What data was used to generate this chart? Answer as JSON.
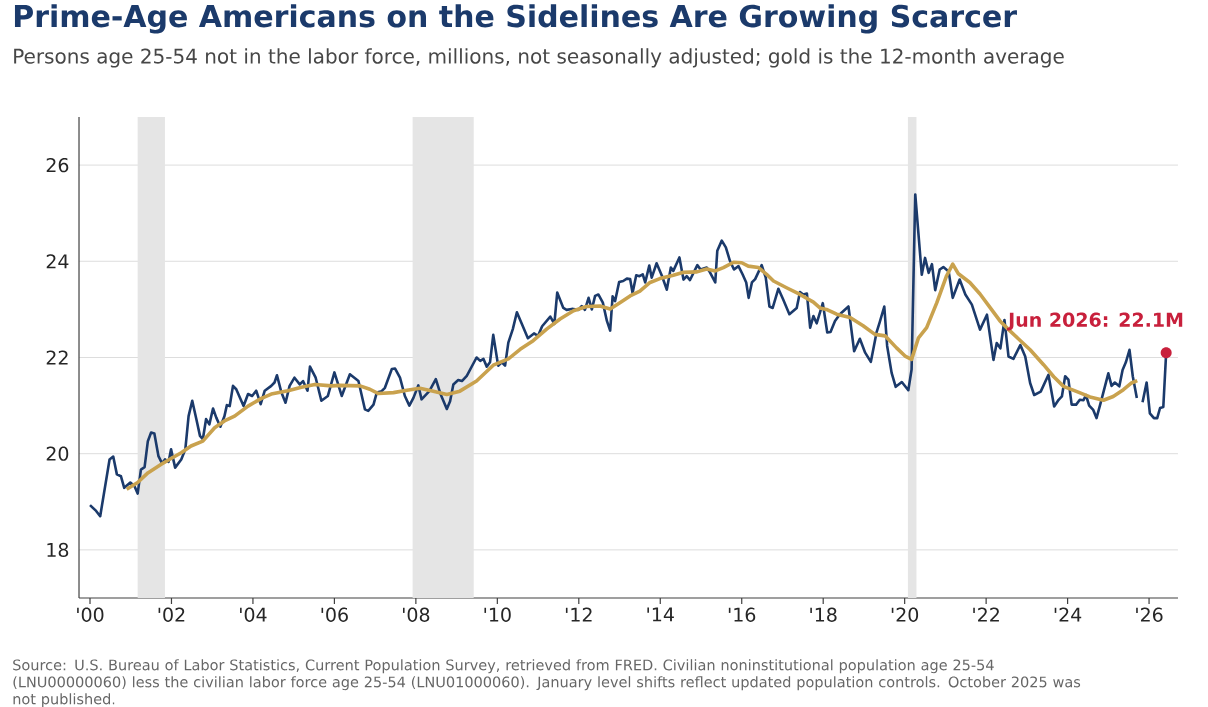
{
  "chart_data": {
    "type": "line",
    "title": "Prime-Age Americans on the Sidelines Are Growing Scarcer",
    "subtitle": "Persons age 25-54 not in the labor force, millions, not seasonally adjusted; gold is the 12-month average",
    "annotations": [
      {
        "text": "Jun 2026: 22.1M",
        "x": 2026.42,
        "y": 22.1
      },
      "Source: U.S. Bureau of Labor Statistics, Current Population Survey, retrieved from FRED. Civilian noninstitutional population age 25-54 (LNU00000060) less the civilian labor force age 25-54 (LNU01000060). January level shifts reflect updated population controls. October 2025 was not published."
    ],
    "xlim": [
      1999.73,
      2026.71
    ],
    "ylim": [
      17,
      27
    ],
    "xticks": [
      {
        "value": 2000,
        "label": "'00"
      },
      {
        "value": 2002,
        "label": "'02"
      },
      {
        "value": 2004,
        "label": "'04"
      },
      {
        "value": 2006,
        "label": "'06"
      },
      {
        "value": 2008,
        "label": "'08"
      },
      {
        "value": 2010,
        "label": "'10"
      },
      {
        "value": 2012,
        "label": "'12"
      },
      {
        "value": 2014,
        "label": "'14"
      },
      {
        "value": 2016,
        "label": "'16"
      },
      {
        "value": 2018,
        "label": "'18"
      },
      {
        "value": 2020,
        "label": "'20"
      },
      {
        "value": 2022,
        "label": "'22"
      },
      {
        "value": 2024,
        "label": "'24"
      },
      {
        "value": 2026,
        "label": "'26"
      }
    ],
    "yticks": [
      18,
      20,
      22,
      24,
      26
    ],
    "grid": "y",
    "bands": [
      {
        "axis": "x",
        "from": 2001.17,
        "to": 2001.84,
        "color": "#e5e5e5"
      },
      {
        "axis": "x",
        "from": 2007.92,
        "to": 2009.42,
        "color": "#e5e5e5"
      },
      {
        "axis": "x",
        "from": 2020.08,
        "to": 2020.29,
        "color": "#e5e5e5"
      }
    ],
    "series": [
      {
        "color": "#1b3a6b",
        "x": [
          2000.0,
          2000.15,
          2000.25,
          2000.48,
          2000.57,
          2000.66,
          2000.76,
          2000.84,
          2000.99,
          2001.09,
          2001.17,
          2001.25,
          2001.34,
          2001.42,
          2001.5,
          2001.58,
          2001.68,
          2001.77,
          2001.84,
          2001.93,
          2001.99,
          2002.09,
          2002.24,
          2002.34,
          2002.42,
          2002.51,
          2002.61,
          2002.7,
          2002.77,
          2002.85,
          2002.93,
          2003.02,
          2003.1,
          2003.2,
          2003.3,
          2003.36,
          2003.43,
          2003.51,
          2003.59,
          2003.77,
          2003.88,
          2003.98,
          2004.08,
          2004.19,
          2004.29,
          2004.45,
          2004.53,
          2004.59,
          2004.7,
          2004.8,
          2004.9,
          2005.02,
          2005.15,
          2005.23,
          2005.34,
          2005.4,
          2005.54,
          2005.68,
          2005.84,
          2006.0,
          2006.18,
          2006.38,
          2006.59,
          2006.75,
          2006.83,
          2006.96,
          2007.04,
          2007.16,
          2007.24,
          2007.41,
          2007.49,
          2007.61,
          2007.73,
          2007.84,
          2007.94,
          2008.06,
          2008.14,
          2008.33,
          2008.49,
          2008.61,
          2008.76,
          2008.84,
          2008.92,
          2009.04,
          2009.13,
          2009.25,
          2009.49,
          2009.58,
          2009.66,
          2009.74,
          2009.82,
          2009.9,
          2010.02,
          2010.11,
          2010.19,
          2010.27,
          2010.38,
          2010.48,
          2010.6,
          2010.75,
          2010.9,
          2011.0,
          2011.1,
          2011.3,
          2011.4,
          2011.47,
          2011.62,
          2011.7,
          2011.83,
          2011.99,
          2012.07,
          2012.15,
          2012.24,
          2012.32,
          2012.4,
          2012.48,
          2012.59,
          2012.69,
          2012.77,
          2012.83,
          2012.89,
          2012.99,
          2013.09,
          2013.18,
          2013.26,
          2013.32,
          2013.41,
          2013.49,
          2013.57,
          2013.63,
          2013.73,
          2013.79,
          2013.91,
          2014.04,
          2014.16,
          2014.26,
          2014.32,
          2014.47,
          2014.57,
          2014.65,
          2014.73,
          2014.91,
          2014.99,
          2015.14,
          2015.22,
          2015.35,
          2015.4,
          2015.51,
          2015.61,
          2015.71,
          2015.81,
          2015.92,
          2016.02,
          2016.11,
          2016.17,
          2016.25,
          2016.33,
          2016.49,
          2016.59,
          2016.68,
          2016.76,
          2016.9,
          2017.01,
          2017.17,
          2017.35,
          2017.43,
          2017.51,
          2017.6,
          2017.68,
          2017.76,
          2017.84,
          2017.99,
          2018.1,
          2018.18,
          2018.29,
          2018.41,
          2018.62,
          2018.76,
          2018.9,
          2019.03,
          2019.17,
          2019.31,
          2019.39,
          2019.5,
          2019.57,
          2019.68,
          2019.78,
          2019.93,
          2020.09,
          2020.17,
          2020.26,
          2020.42,
          2020.5,
          2020.59,
          2020.67,
          2020.75,
          2020.86,
          2020.95,
          2021.08,
          2021.18,
          2021.35,
          2021.49,
          2021.65,
          2021.85,
          2022.02,
          2022.18,
          2022.26,
          2022.35,
          2022.45,
          2022.55,
          2022.67,
          2022.84,
          2022.96,
          2023.08,
          2023.18,
          2023.34,
          2023.53,
          2023.67,
          2023.78,
          2023.86,
          2023.94,
          2024.02,
          2024.1,
          2024.21,
          2024.3,
          2024.39,
          2024.45,
          2024.53,
          2024.63,
          2024.71,
          2024.81,
          2024.92,
          2025.0,
          2025.08,
          2025.16,
          2025.27,
          2025.35,
          2025.43,
          2025.52,
          2025.6,
          2025.7,
          2025.77,
          2025.84,
          2025.94,
          2026.02,
          2026.12,
          2026.2,
          2026.27,
          2026.35,
          2026.42
        ],
        "values": [
          18.93,
          18.81,
          18.7,
          19.88,
          19.94,
          19.57,
          19.53,
          19.29,
          19.4,
          19.33,
          19.17,
          19.67,
          19.72,
          20.26,
          20.44,
          20.42,
          19.95,
          19.8,
          19.88,
          19.83,
          20.09,
          19.71,
          19.88,
          20.09,
          20.78,
          21.1,
          20.72,
          20.37,
          20.3,
          20.72,
          20.61,
          20.94,
          20.75,
          20.56,
          20.78,
          21.01,
          20.99,
          21.41,
          21.34,
          20.99,
          21.24,
          21.2,
          21.31,
          21.03,
          21.31,
          21.41,
          21.48,
          21.63,
          21.27,
          21.06,
          21.41,
          21.58,
          21.44,
          21.51,
          21.31,
          21.81,
          21.58,
          21.1,
          21.2,
          21.69,
          21.2,
          21.65,
          21.51,
          20.92,
          20.89,
          21.02,
          21.27,
          21.3,
          21.37,
          21.76,
          21.77,
          21.58,
          21.2,
          21.0,
          21.16,
          21.42,
          21.13,
          21.3,
          21.55,
          21.23,
          20.93,
          21.09,
          21.44,
          21.53,
          21.51,
          21.62,
          22.0,
          21.93,
          21.97,
          21.81,
          21.9,
          22.47,
          21.83,
          21.9,
          21.83,
          22.31,
          22.59,
          22.94,
          22.7,
          22.4,
          22.5,
          22.45,
          22.65,
          22.85,
          22.7,
          23.35,
          23.03,
          22.99,
          23.01,
          22.99,
          23.07,
          22.99,
          23.24,
          23.0,
          23.28,
          23.31,
          23.14,
          22.76,
          22.56,
          23.27,
          23.17,
          23.57,
          23.59,
          23.64,
          23.63,
          23.34,
          23.71,
          23.69,
          23.73,
          23.56,
          23.91,
          23.66,
          23.96,
          23.7,
          23.41,
          23.87,
          23.8,
          24.08,
          23.62,
          23.69,
          23.61,
          23.92,
          23.83,
          23.87,
          23.77,
          23.56,
          24.22,
          24.43,
          24.29,
          24.01,
          23.83,
          23.9,
          23.73,
          23.56,
          23.24,
          23.56,
          23.63,
          23.92,
          23.66,
          23.06,
          23.03,
          23.43,
          23.22,
          22.9,
          23.03,
          23.36,
          23.31,
          23.33,
          22.62,
          22.86,
          22.71,
          23.13,
          22.52,
          22.53,
          22.76,
          22.9,
          23.06,
          22.13,
          22.39,
          22.1,
          21.91,
          22.52,
          22.74,
          23.06,
          22.24,
          21.68,
          21.39,
          21.49,
          21.32,
          21.75,
          25.39,
          23.72,
          24.07,
          23.76,
          23.94,
          23.4,
          23.83,
          23.88,
          23.79,
          23.24,
          23.62,
          23.31,
          23.1,
          22.58,
          22.89,
          21.95,
          22.3,
          22.19,
          22.78,
          22.02,
          21.97,
          22.26,
          22.02,
          21.47,
          21.22,
          21.29,
          21.64,
          20.98,
          21.12,
          21.19,
          21.61,
          21.54,
          21.02,
          21.02,
          21.12,
          21.11,
          21.22,
          21.0,
          20.91,
          20.74,
          21.05,
          21.41,
          21.67,
          21.41,
          21.48,
          21.4,
          21.74,
          21.9,
          22.16,
          21.61,
          21.16,
          null,
          21.07,
          21.48,
          20.84,
          20.74,
          20.74,
          20.95,
          20.97,
          22.1
        ]
      },
      {
        "color": "#c9a24e",
        "x": [
          2000.9,
          2001.17,
          2001.42,
          2001.75,
          2001.99,
          2002.24,
          2002.48,
          2002.77,
          2003.06,
          2003.3,
          2003.55,
          2003.88,
          2004.21,
          2004.45,
          2004.86,
          2005.19,
          2005.52,
          2005.93,
          2006.14,
          2006.63,
          2006.87,
          2007.08,
          2007.45,
          2007.78,
          2008.1,
          2008.43,
          2008.76,
          2009.08,
          2009.49,
          2009.9,
          2010.27,
          2010.56,
          2010.88,
          2011.21,
          2011.54,
          2011.87,
          2012.19,
          2012.52,
          2012.77,
          2013.01,
          2013.26,
          2013.5,
          2013.75,
          2013.99,
          2014.32,
          2014.57,
          2014.9,
          2015.14,
          2015.35,
          2015.55,
          2015.8,
          2016.0,
          2016.16,
          2016.41,
          2016.61,
          2016.78,
          2017.1,
          2017.43,
          2017.76,
          2017.92,
          2018.08,
          2018.33,
          2018.66,
          2018.98,
          2019.27,
          2019.52,
          2019.8,
          2020.01,
          2020.17,
          2020.34,
          2020.54,
          2020.79,
          2021.03,
          2021.18,
          2021.32,
          2021.6,
          2021.85,
          2022.13,
          2022.34,
          2022.54,
          2022.79,
          2023.08,
          2023.41,
          2023.66,
          2023.9,
          2024.23,
          2024.55,
          2024.88,
          2025.12,
          2025.37,
          2025.57,
          2025.71
        ],
        "values": [
          19.26,
          19.4,
          19.6,
          19.78,
          19.9,
          20.02,
          20.16,
          20.26,
          20.54,
          20.68,
          20.78,
          20.99,
          21.15,
          21.24,
          21.31,
          21.38,
          21.44,
          21.41,
          21.42,
          21.41,
          21.34,
          21.25,
          21.27,
          21.32,
          21.36,
          21.3,
          21.23,
          21.3,
          21.51,
          21.84,
          21.97,
          22.17,
          22.35,
          22.59,
          22.8,
          22.97,
          23.06,
          23.07,
          23.01,
          23.14,
          23.28,
          23.38,
          23.56,
          23.64,
          23.71,
          23.77,
          23.78,
          23.84,
          23.8,
          23.87,
          23.98,
          23.97,
          23.9,
          23.87,
          23.73,
          23.59,
          23.45,
          23.31,
          23.15,
          23.03,
          23.0,
          22.9,
          22.83,
          22.66,
          22.48,
          22.45,
          22.2,
          22.03,
          21.96,
          22.41,
          22.62,
          23.14,
          23.7,
          23.94,
          23.74,
          23.56,
          23.32,
          23.0,
          22.76,
          22.59,
          22.39,
          22.16,
          21.85,
          21.6,
          21.4,
          21.29,
          21.18,
          21.11,
          21.19,
          21.33,
          21.47,
          21.52
        ]
      }
    ]
  }
}
